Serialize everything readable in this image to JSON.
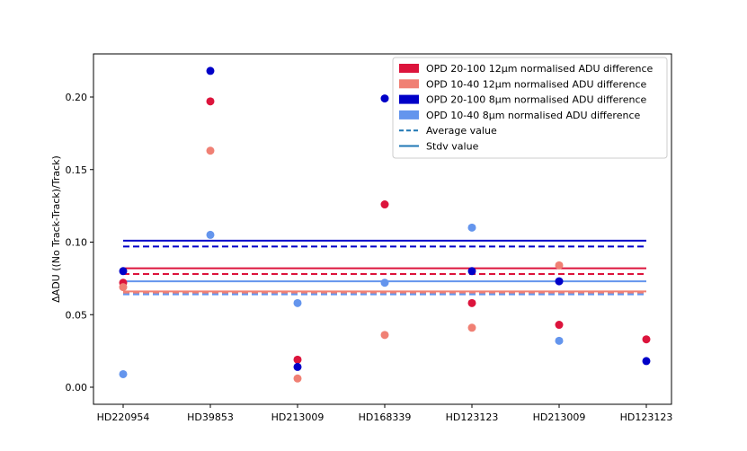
{
  "chart_data": {
    "type": "scatter",
    "title": "",
    "xlabel": "",
    "ylabel": "ΔADU ((No Track-Track)/Track)",
    "ylim": [
      -0.011,
      0.24
    ],
    "yticks": [
      "0.00",
      "0.05",
      "0.10",
      "0.15",
      "0.20"
    ],
    "yticks_values": [
      0.0,
      0.05,
      0.1,
      0.15,
      0.2
    ],
    "categories": [
      "HD220954",
      "HD39853",
      "HD213009",
      "HD168339",
      "HD123123",
      "HD213009",
      "HD123123"
    ],
    "series": [
      {
        "name": "OPD 20-100 12μm normalised ADU difference",
        "color": "#dc143c",
        "values": [
          0.072,
          0.197,
          0.019,
          0.126,
          0.058,
          0.043,
          0.033
        ],
        "average": 0.078,
        "stdv": 0.082
      },
      {
        "name": "OPD 10-40 12μm normalised ADU difference",
        "color": "#f08074",
        "values": [
          0.069,
          0.163,
          0.006,
          0.036,
          0.041,
          0.084,
          null
        ],
        "average": 0.065,
        "stdv": 0.066
      },
      {
        "name": "OPD 20-100 8μm normalised ADU difference",
        "color": "#0000c8",
        "values": [
          0.08,
          0.218,
          0.014,
          0.199,
          0.08,
          0.073,
          0.018
        ],
        "average": 0.097,
        "stdv": 0.101
      },
      {
        "name": "OPD 10-40 8μm normalised ADU difference",
        "color": "#6495ed",
        "values": [
          0.009,
          0.105,
          0.058,
          0.072,
          0.11,
          0.032,
          null
        ],
        "average": 0.064,
        "stdv": 0.073
      }
    ],
    "legend": {
      "placement": "top-right",
      "entries": [
        {
          "label": "OPD 20-100 12μm normalised ADU difference",
          "kind": "patch",
          "color": "#dc143c"
        },
        {
          "label": "OPD 10-40 12μm normalised ADU difference",
          "kind": "patch",
          "color": "#f08074"
        },
        {
          "label": "OPD 20-100 8μm normalised ADU difference",
          "kind": "patch",
          "color": "#0000c8"
        },
        {
          "label": "OPD 10-40 8μm normalised ADU difference",
          "kind": "patch",
          "color": "#6495ed"
        },
        {
          "label": "Average value",
          "kind": "dashed-line",
          "color": "#1f77b4"
        },
        {
          "label": "Stdv value",
          "kind": "solid-line",
          "color": "#1f77b4"
        }
      ]
    }
  }
}
